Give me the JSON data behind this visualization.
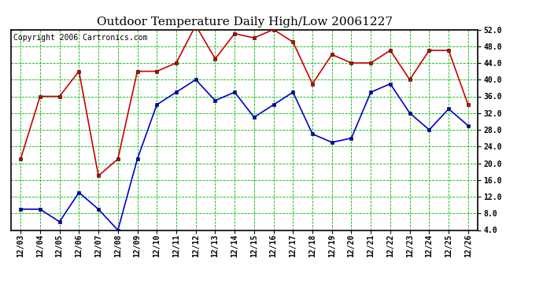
{
  "title": "Outdoor Temperature Daily High/Low 20061227",
  "copyright": "Copyright 2006 Cartronics.com",
  "dates": [
    "12/03",
    "12/04",
    "12/05",
    "12/06",
    "12/07",
    "12/08",
    "12/09",
    "12/10",
    "12/11",
    "12/12",
    "12/13",
    "12/14",
    "12/15",
    "12/16",
    "12/17",
    "12/18",
    "12/19",
    "12/20",
    "12/21",
    "12/22",
    "12/23",
    "12/24",
    "12/25",
    "12/26"
  ],
  "high": [
    21,
    36,
    36,
    42,
    17,
    21,
    42,
    42,
    44,
    53,
    45,
    51,
    50,
    52,
    49,
    39,
    46,
    44,
    44,
    47,
    40,
    47,
    47,
    34
  ],
  "low": [
    9,
    9,
    6,
    13,
    9,
    4,
    21,
    34,
    37,
    40,
    35,
    37,
    31,
    34,
    37,
    27,
    25,
    26,
    37,
    39,
    32,
    28,
    33,
    29
  ],
  "high_color": "#cc0000",
  "low_color": "#0000cc",
  "background_color": "#ffffff",
  "plot_bg_color": "#ffffff",
  "grid_color": "#00bb00",
  "title_color": "#000000",
  "copyright_color": "#000000",
  "border_color": "#000000",
  "ylim_min": 4.0,
  "ylim_max": 52.0,
  "yticks": [
    4.0,
    8.0,
    12.0,
    16.0,
    20.0,
    24.0,
    28.0,
    32.0,
    36.0,
    40.0,
    44.0,
    48.0,
    52.0
  ],
  "marker": "s",
  "marker_size": 3,
  "linewidth": 1.2,
  "title_fontsize": 11,
  "tick_fontsize": 7,
  "copyright_fontsize": 7
}
